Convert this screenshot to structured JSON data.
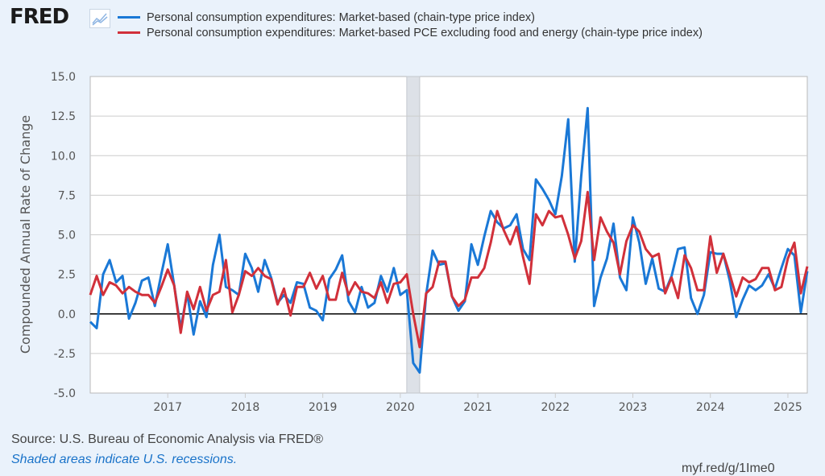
{
  "header": {
    "logo_text": "FRED",
    "logo_icon": "line-chart-icon"
  },
  "footer": {
    "source": "Source: U.S. Bureau of Economic Analysis via FRED®",
    "note": "Shaded areas indicate U.S. recessions.",
    "link": "myf.red/g/1Ime0"
  },
  "chart_data": {
    "type": "line",
    "title": "",
    "xlabel": "",
    "ylabel": "Compounded Annual Rate of Change",
    "ylim": [
      -5.0,
      15.0
    ],
    "yticks": [
      "15.0",
      "12.5",
      "10.0",
      "7.5",
      "5.0",
      "2.5",
      "0.0",
      "-2.5",
      "-5.0"
    ],
    "ytick_values": [
      15.0,
      12.5,
      10.0,
      7.5,
      5.0,
      2.5,
      0.0,
      -2.5,
      -5.0
    ],
    "xticks": [
      "2017",
      "2018",
      "2019",
      "2020",
      "2021",
      "2022",
      "2023",
      "2024",
      "2025"
    ],
    "x_start": "2016-01",
    "x_end": "2025-04",
    "frequency": "monthly",
    "grid": true,
    "legend_position": "top",
    "recessions": [
      {
        "start": "2020-02",
        "end": "2020-04"
      }
    ],
    "series": [
      {
        "name": "Personal consumption expenditures: Market-based (chain-type price index)",
        "color": "#1a78d6",
        "values": [
          -0.5,
          -0.9,
          2.5,
          3.4,
          2.0,
          2.4,
          -0.3,
          0.7,
          2.1,
          2.3,
          0.5,
          2.5,
          4.4,
          1.8,
          -0.9,
          1.3,
          -1.3,
          0.8,
          -0.2,
          3.1,
          5.0,
          1.7,
          1.5,
          1.2,
          3.8,
          2.9,
          1.4,
          3.4,
          2.3,
          0.7,
          1.2,
          0.7,
          2.0,
          1.9,
          0.4,
          0.2,
          -0.4,
          2.2,
          2.8,
          3.7,
          0.8,
          0.1,
          1.7,
          0.4,
          0.7,
          2.4,
          1.4,
          2.9,
          1.2,
          1.5,
          -3.1,
          -3.7,
          1.2,
          4.0,
          3.1,
          3.2,
          1.1,
          0.2,
          0.8,
          4.4,
          3.1,
          4.9,
          6.5,
          5.8,
          5.4,
          5.6,
          6.3,
          4.1,
          3.4,
          8.5,
          7.9,
          7.2,
          6.3,
          8.7,
          12.3,
          3.3,
          8.7,
          13.0,
          0.5,
          2.3,
          3.5,
          5.7,
          2.3,
          1.5,
          6.1,
          4.5,
          1.9,
          3.5,
          1.6,
          1.4,
          2.4,
          4.1,
          4.2,
          1.0,
          0.0,
          1.2,
          3.9,
          3.8,
          3.8,
          2.1,
          -0.2,
          0.9,
          1.8,
          1.5,
          1.8,
          2.5,
          1.6,
          2.9,
          4.1,
          3.7,
          0.1,
          2.7
        ]
      },
      {
        "name": "Personal consumption expenditures: Market-based PCE excluding food and energy (chain-type price index)",
        "color": "#d1303a",
        "values": [
          1.2,
          2.4,
          1.2,
          2.0,
          1.8,
          1.3,
          1.7,
          1.4,
          1.2,
          1.2,
          0.7,
          1.7,
          2.8,
          1.8,
          -1.2,
          1.4,
          0.3,
          1.7,
          0.2,
          1.2,
          1.4,
          3.4,
          0.1,
          1.2,
          2.7,
          2.4,
          2.9,
          2.4,
          2.2,
          0.6,
          1.6,
          -0.1,
          1.7,
          1.7,
          2.6,
          1.6,
          2.4,
          0.9,
          0.9,
          2.6,
          1.2,
          2.0,
          1.4,
          1.3,
          1.0,
          2.0,
          0.7,
          1.9,
          2.0,
          2.5,
          0.0,
          -2.1,
          1.3,
          1.7,
          3.3,
          3.3,
          1.1,
          0.5,
          0.9,
          2.3,
          2.3,
          2.9,
          4.5,
          6.5,
          5.3,
          4.4,
          5.5,
          3.6,
          1.9,
          6.3,
          5.6,
          6.5,
          6.1,
          6.2,
          5.0,
          3.5,
          4.6,
          7.7,
          3.4,
          6.1,
          5.2,
          4.5,
          2.5,
          4.6,
          5.6,
          5.2,
          4.1,
          3.6,
          3.8,
          1.3,
          2.3,
          1.0,
          3.7,
          2.9,
          1.5,
          1.5,
          4.9,
          2.6,
          3.8,
          2.5,
          1.1,
          2.3,
          2.0,
          2.2,
          2.9,
          2.9,
          1.5,
          1.7,
          3.5,
          4.5,
          1.3,
          3.0
        ]
      }
    ]
  }
}
